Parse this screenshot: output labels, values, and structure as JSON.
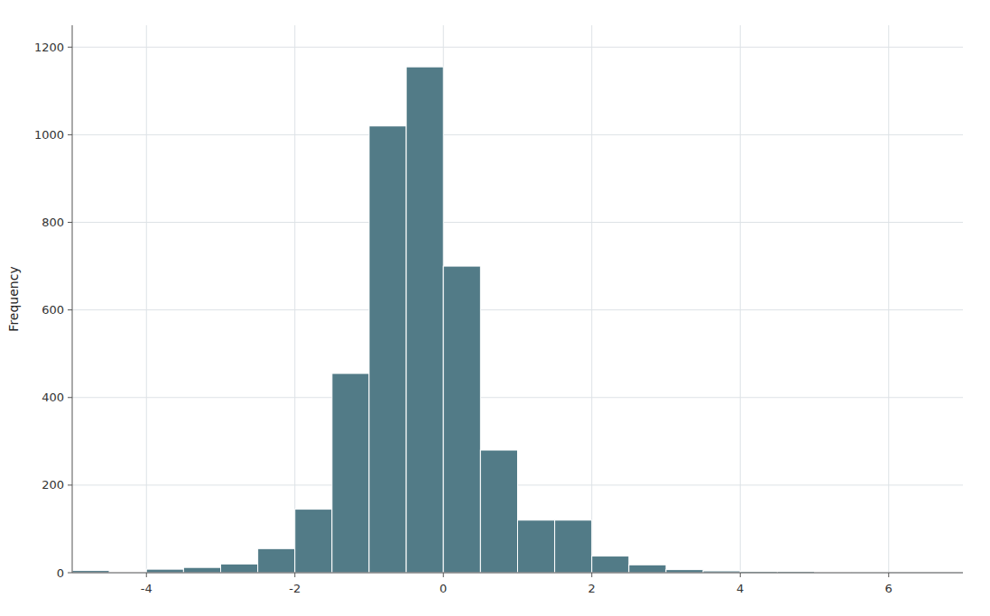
{
  "chart_data": {
    "type": "histogram",
    "ylabel": "Frequency",
    "bins": [
      -5.0,
      -4.5,
      -4.0,
      -3.5,
      -3.0,
      -2.5,
      -2.0,
      -1.5,
      -1.0,
      -0.5,
      0.0,
      0.5,
      1.0,
      1.5,
      2.0,
      2.5,
      3.0,
      3.5,
      4.0,
      4.5,
      5.0,
      5.5,
      6.0
    ],
    "values": [
      5,
      2,
      8,
      12,
      20,
      55,
      145,
      455,
      1020,
      1155,
      700,
      280,
      120,
      120,
      38,
      18,
      7,
      4,
      3,
      3,
      2,
      1
    ],
    "color": "#527b87",
    "xlim": [
      -5.0,
      7.0
    ],
    "ylim": [
      0,
      1250
    ],
    "xticks": [
      -4,
      -2,
      0,
      2,
      4,
      6
    ],
    "yticks": [
      0,
      200,
      400,
      600,
      800,
      1000,
      1200
    ],
    "grid": true
  }
}
